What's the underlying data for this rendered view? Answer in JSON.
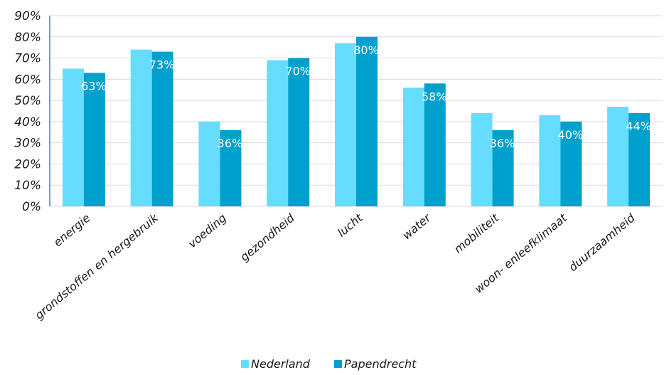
{
  "chart_data": {
    "type": "bar",
    "title": "",
    "xlabel": "",
    "ylabel": "",
    "ylim": [
      0,
      90
    ],
    "yticks": [
      "0%",
      "10%",
      "20%",
      "30%",
      "40%",
      "50%",
      "60%",
      "70%",
      "80%",
      "90%"
    ],
    "grid": true,
    "legend_position": "bottom",
    "categories": [
      "energie",
      "grondstoffen en hergebruik",
      "voeding",
      "gezondheid",
      "lucht",
      "water",
      "mobiliteit",
      "woon- enleefklimaat",
      "duurzaamheid"
    ],
    "series": [
      {
        "name": "Nederland",
        "color": "#66DDFF",
        "values": [
          65,
          74,
          40,
          69,
          77,
          56,
          44,
          43,
          47
        ]
      },
      {
        "name": "Papendrecht",
        "color": "#00A0CC",
        "values": [
          63,
          73,
          36,
          70,
          80,
          58,
          36,
          40,
          44
        ],
        "data_labels": [
          "63%",
          "73%",
          "36%",
          "70%",
          "80%",
          "58%",
          "36%",
          "40%",
          "44%"
        ]
      }
    ]
  }
}
